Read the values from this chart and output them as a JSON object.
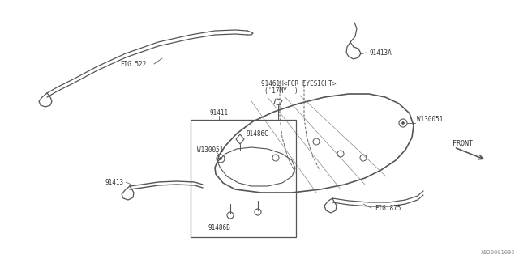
{
  "bg_color": "#ffffff",
  "line_color": "#555555",
  "text_color": "#333333",
  "labels": {
    "fig522": "FIG.522",
    "91413a": "91413A",
    "91461h": "91461H<FOR EYESIGHT>",
    "17my": "('17MY- )",
    "w130051_right": "W130051",
    "front": "FRONT",
    "91411": "91411",
    "91486c": "91486C",
    "w130051_left": "W130051",
    "91413": "91413",
    "fig875": "FIG.875",
    "91486b": "91486B",
    "diagram_code": "A920001093"
  },
  "figsize": [
    6.4,
    3.2
  ],
  "dpi": 100
}
